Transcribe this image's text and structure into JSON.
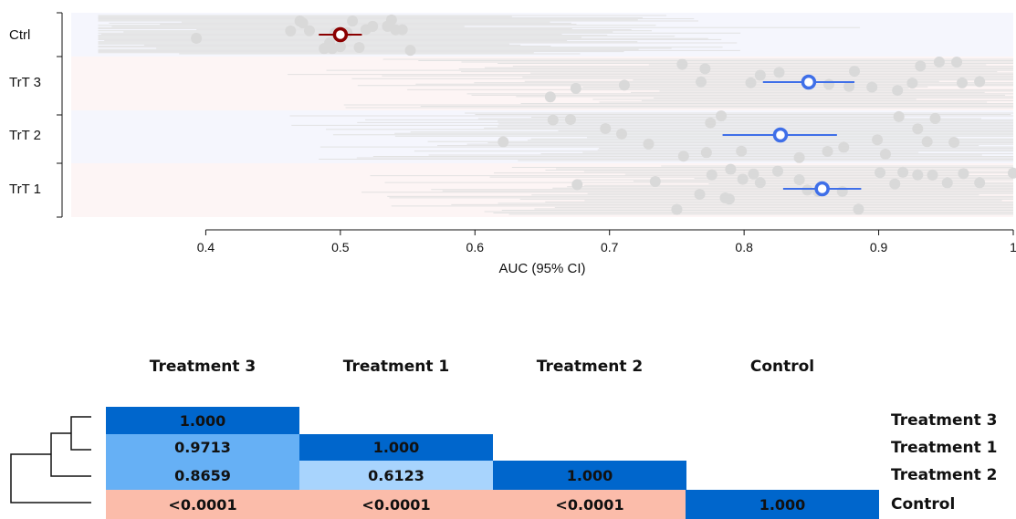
{
  "chart_data": [
    {
      "type": "forest",
      "xlabel": "AUC (95% CI)",
      "xlim": [
        0.3,
        1.0
      ],
      "xticks": [
        0.4,
        0.5,
        0.6,
        0.7,
        0.8,
        0.9,
        1
      ],
      "xtick_labels": [
        "0.4",
        "0.5",
        "0.6",
        "0.7",
        "0.8",
        "0.9",
        "1"
      ],
      "series": [
        {
          "name": "Ctrl",
          "auc": 0.5,
          "ci": [
            0.484,
            0.516
          ],
          "color": "#8b0000",
          "band_color": "#f5f6fd",
          "replicates": [
            0.393,
            0.463,
            0.47,
            0.472,
            0.477,
            0.488,
            0.492,
            0.494,
            0.496,
            0.5,
            0.505,
            0.509,
            0.514,
            0.519,
            0.524,
            0.535,
            0.538,
            0.541,
            0.546,
            0.552
          ]
        },
        {
          "name": "TrT 3",
          "auc": 0.848,
          "ci": [
            0.814,
            0.882
          ],
          "color": "#3f6fe8",
          "band_color": "#fdf5f5",
          "replicates": [
            0.656,
            0.675,
            0.711,
            0.754,
            0.768,
            0.771,
            0.805,
            0.812,
            0.826,
            0.863,
            0.878,
            0.882,
            0.895,
            0.914,
            0.925,
            0.931,
            0.945,
            0.962,
            0.975,
            0.958
          ]
        },
        {
          "name": "TrT 2",
          "auc": 0.827,
          "ci": [
            0.784,
            0.869
          ],
          "color": "#3f6fe8",
          "band_color": "#f5f6fd",
          "replicates": [
            0.621,
            0.658,
            0.671,
            0.697,
            0.709,
            0.729,
            0.755,
            0.772,
            0.775,
            0.783,
            0.798,
            0.841,
            0.862,
            0.874,
            0.899,
            0.905,
            0.915,
            0.929,
            0.936,
            0.942,
            0.956
          ]
        },
        {
          "name": "TrT 1",
          "auc": 0.858,
          "ci": [
            0.829,
            0.887
          ],
          "color": "#3f6fe8",
          "band_color": "#fdf5f5",
          "replicates": [
            0.676,
            0.734,
            0.75,
            0.767,
            0.776,
            0.786,
            0.789,
            0.79,
            0.799,
            0.807,
            0.812,
            0.825,
            0.841,
            0.847,
            0.855,
            0.873,
            0.885,
            0.901,
            0.912,
            0.918,
            0.929,
            0.94,
            0.951,
            0.963,
            0.975,
            1.0
          ]
        }
      ]
    },
    {
      "type": "table",
      "columns": [
        "Treatment 3",
        "Treatment 1",
        "Treatment 2",
        "Control"
      ],
      "rows": [
        {
          "label": "Treatment 3",
          "cells": [
            "1.000",
            "",
            "",
            ""
          ]
        },
        {
          "label": "Treatment 1",
          "cells": [
            "0.9713",
            "1.000",
            "",
            ""
          ]
        },
        {
          "label": "Treatment 2",
          "cells": [
            "0.8659",
            "0.6123",
            "1.000",
            ""
          ]
        },
        {
          "label": "Control",
          "cells": [
            "<0.0001",
            "<0.0001",
            "<0.0001",
            "1.000"
          ]
        }
      ],
      "cell_colors": [
        [
          "#0066cc",
          null,
          null,
          null
        ],
        [
          "#66b0f5",
          "#0066cc",
          null,
          null
        ],
        [
          "#66b0f5",
          "#a8d4fd",
          "#0066cc",
          null
        ],
        [
          "#fbbcaa",
          "#fbbcaa",
          "#fbbcaa",
          "#0066cc"
        ]
      ]
    }
  ]
}
